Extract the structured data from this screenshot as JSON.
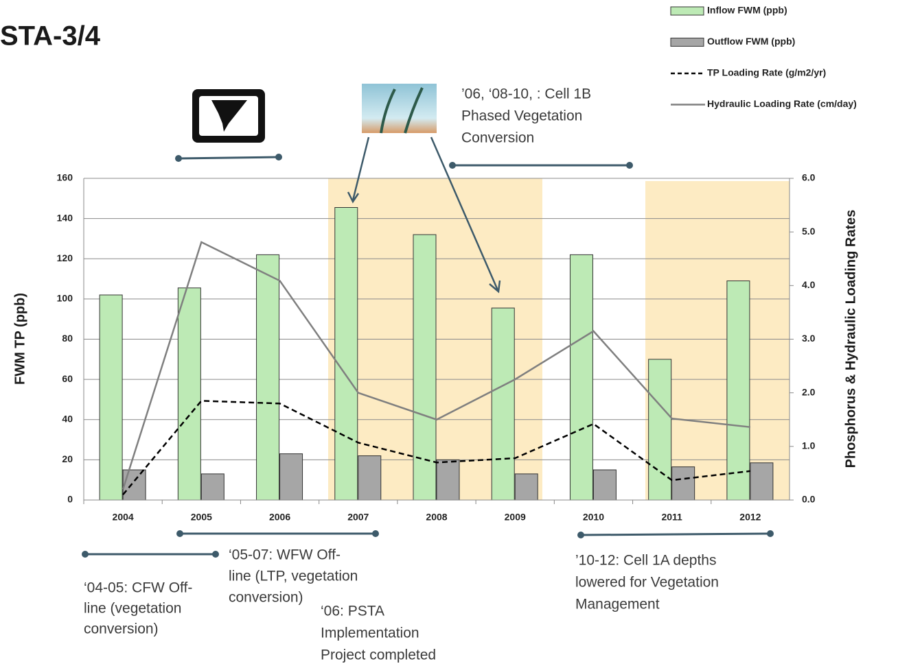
{
  "title": "STA-3/4",
  "chart_data": {
    "type": "bar",
    "categories": [
      "2004",
      "2005",
      "2006",
      "2007",
      "2008",
      "2009",
      "2010",
      "2011",
      "2012"
    ],
    "y_label": "FWM TP (ppb)",
    "y2_label": "Phosphorus & Hydraulic Loading Rates",
    "ylim": [
      0,
      160
    ],
    "yticks": [
      0,
      20,
      40,
      60,
      80,
      100,
      120,
      140,
      160
    ],
    "y2lim": [
      0,
      6
    ],
    "y2ticks": [
      {
        "value": 0,
        "label": "0.0"
      },
      {
        "value": 1,
        "label": "1.0"
      },
      {
        "value": 2,
        "label": "2.0"
      },
      {
        "value": 3,
        "label": "3.0"
      },
      {
        "value": 4,
        "label": "4.0"
      },
      {
        "value": 5,
        "label": "5.0"
      },
      {
        "value": 6,
        "label": "6.0"
      }
    ],
    "grid": true,
    "series": [
      {
        "name": "Inflow FWM (ppb)",
        "type": "bar",
        "color": "#bdeab5",
        "values": [
          102,
          105.5,
          122,
          145.5,
          132,
          95.5,
          122,
          70,
          109
        ]
      },
      {
        "name": "Outflow FWM (ppb)",
        "type": "bar",
        "color": "#a6a6a6",
        "values": [
          15,
          13,
          23,
          22,
          20,
          13,
          15,
          16.5,
          18.5
        ]
      },
      {
        "name": "TP Loading Rate (g/m2/yr)",
        "type": "line",
        "dash": true,
        "axis": "y2",
        "color": "#000000",
        "values": [
          0.1,
          1.85,
          1.8,
          1.07,
          0.7,
          0.78,
          1.42,
          0.37,
          0.54
        ]
      },
      {
        "name": "Hydraulic Loading Rate (cm/day)",
        "type": "line",
        "axis": "y2",
        "color": "#7f7f7f",
        "values": [
          0.2,
          4.81,
          4.09,
          2.0,
          1.5,
          2.25,
          3.15,
          1.52,
          1.36
        ]
      }
    ]
  },
  "annotations": [
    {
      "lines": [
        "’06, ‘08-10, : Cell 1B",
        "Phased Vegetation",
        "Conversion"
      ]
    },
    {
      "lines": [
        "‘04-05: CFW Off-",
        "line (vegetation",
        "conversion)"
      ]
    },
    {
      "lines": [
        "‘05-07: WFW Off-",
        "line (LTP, vegetation",
        "conversion)"
      ]
    },
    {
      "lines": [
        "‘06: PSTA",
        "Implementation",
        "Project completed"
      ]
    },
    {
      "lines": [
        "’10-12: Cell 1A depths",
        "lowered for Vegetation",
        "Management"
      ]
    }
  ]
}
